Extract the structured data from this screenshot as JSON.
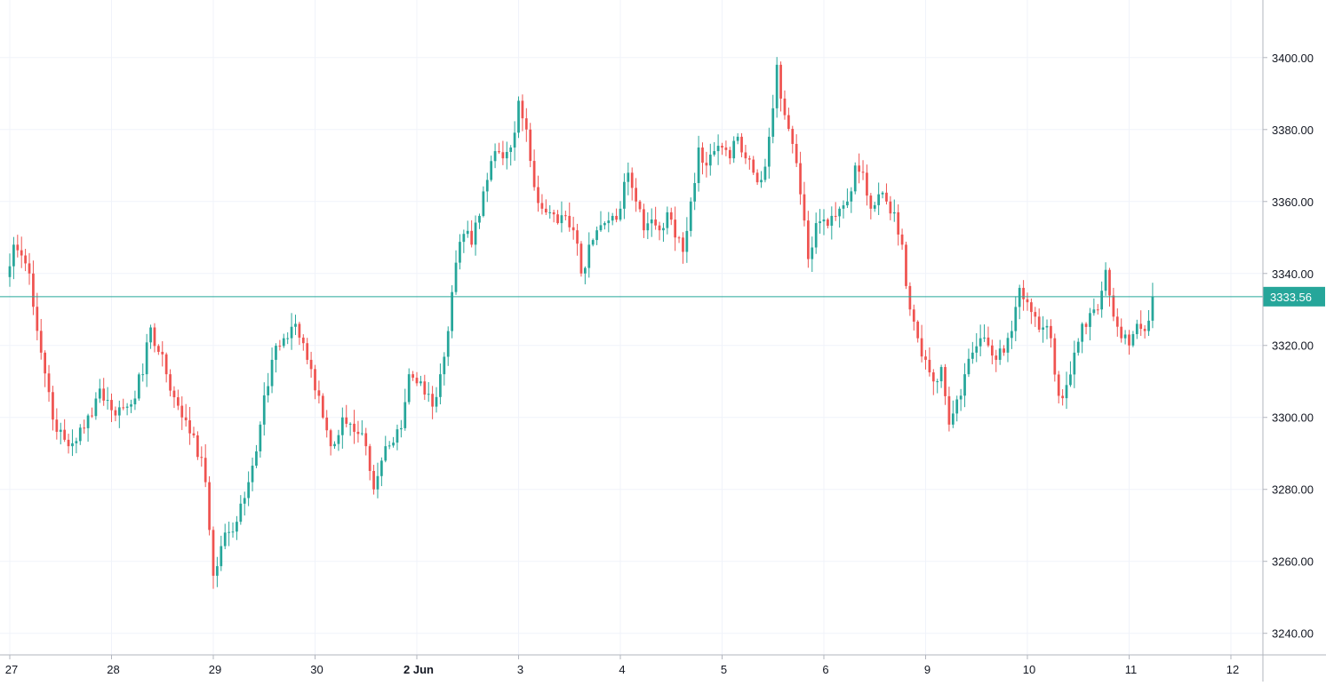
{
  "colors": {
    "background": "#ffffff",
    "grid": "#f0f3fa",
    "axis_border": "#b2b5be",
    "axis_text": "#131722",
    "up": "#26a69a",
    "down": "#ef5350",
    "last_price": "#26a69a",
    "last_price_text": "#ffffff"
  },
  "chart_data": {
    "type": "candlestick",
    "title": "",
    "xlabel": "",
    "ylabel": "",
    "ylim": [
      3234,
      3416
    ],
    "grid": true,
    "y_ticks": [
      "3240.00",
      "3260.00",
      "3280.00",
      "3300.00",
      "3320.00",
      "3340.00",
      "3360.00",
      "3380.00",
      "3400.00"
    ],
    "x_ticks": [
      {
        "label": "27",
        "bold": false
      },
      {
        "label": "28",
        "bold": false
      },
      {
        "label": "29",
        "bold": false
      },
      {
        "label": "30",
        "bold": false
      },
      {
        "label": "2 Jun",
        "bold": true
      },
      {
        "label": "3",
        "bold": false
      },
      {
        "label": "4",
        "bold": false
      },
      {
        "label": "5",
        "bold": false
      },
      {
        "label": "6",
        "bold": false
      },
      {
        "label": "9",
        "bold": false
      },
      {
        "label": "10",
        "bold": false
      },
      {
        "label": "11",
        "bold": false
      },
      {
        "label": "12",
        "bold": false
      }
    ],
    "last_price": 3333.56,
    "last_price_label": "3333.56",
    "candles_per_session": 26,
    "path": [
      [
        0,
        3342
      ],
      [
        1,
        3348
      ],
      [
        3,
        3345
      ],
      [
        5,
        3340
      ],
      [
        8,
        3318
      ],
      [
        12,
        3296
      ],
      [
        15,
        3292
      ],
      [
        19,
        3297
      ],
      [
        23,
        3308
      ],
      [
        26,
        3302
      ],
      [
        30,
        3303
      ],
      [
        34,
        3312
      ],
      [
        36,
        3325
      ],
      [
        40,
        3312
      ],
      [
        44,
        3300
      ],
      [
        47,
        3295
      ],
      [
        50,
        3282
      ],
      [
        52,
        3256
      ],
      [
        55,
        3268
      ],
      [
        58,
        3271
      ],
      [
        61,
        3282
      ],
      [
        64,
        3298
      ],
      [
        67,
        3316
      ],
      [
        70,
        3322
      ],
      [
        73,
        3326
      ],
      [
        76,
        3316
      ],
      [
        79,
        3306
      ],
      [
        82,
        3292
      ],
      [
        85,
        3300
      ],
      [
        88,
        3296
      ],
      [
        91,
        3292
      ],
      [
        93,
        3280
      ],
      [
        96,
        3292
      ],
      [
        98,
        3293
      ],
      [
        100,
        3297
      ],
      [
        102,
        3312
      ],
      [
        105,
        3310
      ],
      [
        108,
        3303
      ],
      [
        110,
        3312
      ],
      [
        112,
        3324
      ],
      [
        114,
        3343
      ],
      [
        116,
        3351
      ],
      [
        118,
        3348
      ],
      [
        120,
        3356
      ],
      [
        122,
        3366
      ],
      [
        124,
        3374
      ],
      [
        126,
        3372
      ],
      [
        128,
        3375
      ],
      [
        130,
        3388
      ],
      [
        132,
        3380
      ],
      [
        134,
        3364
      ],
      [
        136,
        3358
      ],
      [
        138,
        3357
      ],
      [
        140,
        3354
      ],
      [
        142,
        3356
      ],
      [
        144,
        3352
      ],
      [
        146,
        3340
      ],
      [
        148,
        3348
      ],
      [
        150,
        3352
      ],
      [
        152,
        3354
      ],
      [
        154,
        3356
      ],
      [
        156,
        3358
      ],
      [
        158,
        3368
      ],
      [
        160,
        3360
      ],
      [
        162,
        3352
      ],
      [
        164,
        3355
      ],
      [
        166,
        3352
      ],
      [
        168,
        3357
      ],
      [
        170,
        3350
      ],
      [
        172,
        3346
      ],
      [
        174,
        3360
      ],
      [
        176,
        3375
      ],
      [
        178,
        3370
      ],
      [
        180,
        3374
      ],
      [
        182,
        3375
      ],
      [
        184,
        3372
      ],
      [
        186,
        3378
      ],
      [
        188,
        3372
      ],
      [
        190,
        3368
      ],
      [
        192,
        3366
      ],
      [
        194,
        3378
      ],
      [
        196,
        3398
      ],
      [
        198,
        3384
      ],
      [
        200,
        3376
      ],
      [
        202,
        3362
      ],
      [
        204,
        3344
      ],
      [
        206,
        3354
      ],
      [
        208,
        3355
      ],
      [
        210,
        3356
      ],
      [
        212,
        3358
      ],
      [
        214,
        3360
      ],
      [
        216,
        3370
      ],
      [
        218,
        3368
      ],
      [
        220,
        3358
      ],
      [
        222,
        3362
      ],
      [
        224,
        3360
      ],
      [
        226,
        3357
      ],
      [
        228,
        3348
      ],
      [
        230,
        3330
      ],
      [
        232,
        3322
      ],
      [
        234,
        3316
      ],
      [
        236,
        3310
      ],
      [
        238,
        3314
      ],
      [
        240,
        3298
      ],
      [
        242,
        3305
      ],
      [
        244,
        3312
      ],
      [
        246,
        3318
      ],
      [
        248,
        3322
      ],
      [
        250,
        3320
      ],
      [
        252,
        3316
      ],
      [
        254,
        3318
      ],
      [
        256,
        3324
      ],
      [
        258,
        3336
      ],
      [
        260,
        3332
      ],
      [
        262,
        3328
      ],
      [
        264,
        3325
      ],
      [
        266,
        3322
      ],
      [
        268,
        3306
      ],
      [
        270,
        3309
      ],
      [
        272,
        3318
      ],
      [
        274,
        3326
      ],
      [
        276,
        3329
      ],
      [
        278,
        3330
      ],
      [
        280,
        3341
      ],
      [
        282,
        3328
      ],
      [
        284,
        3322
      ],
      [
        286,
        3320
      ],
      [
        288,
        3326
      ],
      [
        290,
        3324
      ],
      [
        292,
        3333.56
      ]
    ],
    "x_tick_candle_index": [
      0,
      26,
      52,
      78,
      104,
      130,
      156,
      182,
      208,
      234,
      260,
      286,
      312
    ]
  }
}
